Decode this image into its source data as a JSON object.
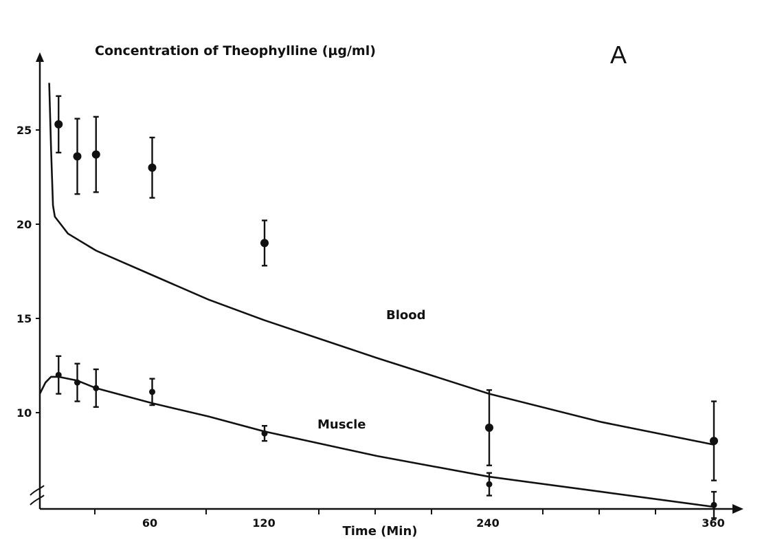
{
  "chart_data": {
    "type": "scatter",
    "title": "Concentration of Theophylline (µg/ml)",
    "panel_label": "A",
    "xlabel": "Time (Min)",
    "ylabel": "",
    "x_ticks": [
      "60",
      "120",
      "240",
      "360"
    ],
    "y_ticks": [
      "25",
      "20",
      "15",
      "10"
    ],
    "x_tick_values": [
      60,
      120,
      240,
      360
    ],
    "y_tick_values": [
      25,
      20,
      15,
      10
    ],
    "axis_break": "y",
    "grid": false,
    "series": [
      {
        "name": "Blood",
        "points": [
          {
            "x": 10,
            "y": 25.3,
            "err": 1.5
          },
          {
            "x": 20,
            "y": 23.6,
            "err": 2.0
          },
          {
            "x": 30,
            "y": 23.7,
            "err": 2.0
          },
          {
            "x": 60,
            "y": 23.0,
            "err": 1.6
          },
          {
            "x": 120,
            "y": 19.0,
            "err": 1.2
          },
          {
            "x": 240,
            "y": 9.2,
            "err": 2.0
          },
          {
            "x": 360,
            "y": 8.5,
            "err": 2.1
          }
        ],
        "fit_curve": [
          {
            "x": 5,
            "y": 27.5
          },
          {
            "x": 6,
            "y": 24.0
          },
          {
            "x": 7,
            "y": 21.0
          },
          {
            "x": 8,
            "y": 20.4
          },
          {
            "x": 15,
            "y": 19.5
          },
          {
            "x": 30,
            "y": 18.6
          },
          {
            "x": 60,
            "y": 17.3
          },
          {
            "x": 90,
            "y": 16.0
          },
          {
            "x": 120,
            "y": 14.9
          },
          {
            "x": 150,
            "y": 13.9
          },
          {
            "x": 180,
            "y": 12.9
          },
          {
            "x": 240,
            "y": 11.0
          },
          {
            "x": 300,
            "y": 9.5
          },
          {
            "x": 360,
            "y": 8.3
          }
        ]
      },
      {
        "name": "Muscle",
        "points": [
          {
            "x": 10,
            "y": 12.0,
            "err": 1.0
          },
          {
            "x": 20,
            "y": 11.6,
            "err": 1.0
          },
          {
            "x": 30,
            "y": 11.3,
            "err": 1.0
          },
          {
            "x": 60,
            "y": 11.1,
            "err": 0.7
          },
          {
            "x": 120,
            "y": 8.9,
            "err": 0.4
          },
          {
            "x": 240,
            "y": 6.2,
            "err": 0.6
          },
          {
            "x": 360,
            "y": 5.1,
            "err": 0.7
          }
        ],
        "fit_curve": [
          {
            "x": 0,
            "y": 11.0
          },
          {
            "x": 3,
            "y": 11.6
          },
          {
            "x": 6,
            "y": 11.9
          },
          {
            "x": 10,
            "y": 11.9
          },
          {
            "x": 20,
            "y": 11.7
          },
          {
            "x": 30,
            "y": 11.3
          },
          {
            "x": 60,
            "y": 10.5
          },
          {
            "x": 90,
            "y": 9.8
          },
          {
            "x": 120,
            "y": 9.0
          },
          {
            "x": 180,
            "y": 7.7
          },
          {
            "x": 240,
            "y": 6.6
          },
          {
            "x": 300,
            "y": 5.8
          },
          {
            "x": 360,
            "y": 5.0
          }
        ]
      }
    ]
  }
}
